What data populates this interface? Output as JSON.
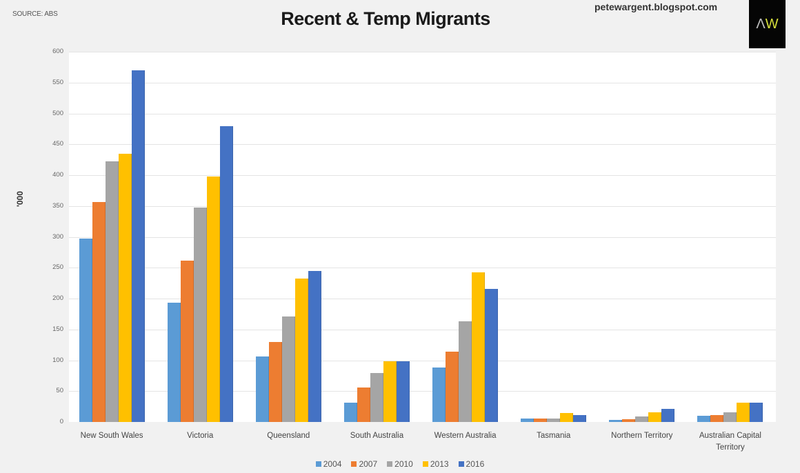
{
  "header": {
    "source": "SOURCE: ABS",
    "title": "Recent & Temp Migrants",
    "site": "petewargent.blogspot.com",
    "logo_a": "Λ",
    "logo_w": "W"
  },
  "colors": {
    "2004": "#5b9bd5",
    "2007": "#ed7d31",
    "2010": "#a5a5a5",
    "2013": "#ffc000",
    "2016": "#4472c4"
  },
  "chart_data": {
    "type": "bar",
    "title": "Recent & Temp Migrants",
    "xlabel": "",
    "ylabel": "'000",
    "ylim": [
      0,
      600
    ],
    "yticks": [
      0,
      50,
      100,
      150,
      200,
      250,
      300,
      350,
      400,
      450,
      500,
      550,
      600
    ],
    "grid": true,
    "legend_position": "bottom",
    "source": "SOURCE: ABS",
    "categories": [
      "New South Wales",
      "Victoria",
      "Queensland",
      "South Australia",
      "Western Australia",
      "Tasmania",
      "Northern Territory",
      "Australian Capital Territory"
    ],
    "series": [
      {
        "name": "2004",
        "color": "#5b9bd5",
        "values": [
          297,
          193,
          106,
          31,
          88,
          6,
          3,
          10
        ]
      },
      {
        "name": "2007",
        "color": "#ed7d31",
        "values": [
          357,
          262,
          130,
          56,
          114,
          6,
          5,
          11
        ]
      },
      {
        "name": "2010",
        "color": "#a5a5a5",
        "values": [
          422,
          347,
          171,
          79,
          163,
          6,
          9,
          16
        ]
      },
      {
        "name": "2013",
        "color": "#ffc000",
        "values": [
          435,
          398,
          232,
          98,
          242,
          14,
          16,
          31
        ]
      },
      {
        "name": "2016",
        "color": "#4472c4",
        "values": [
          570,
          479,
          245,
          98,
          216,
          11,
          21,
          31
        ]
      }
    ]
  },
  "xlabels": [
    "New South Wales",
    "Victoria",
    "Queensland",
    "South Australia",
    "Western Australia",
    "Tasmania",
    "Northern Territory",
    "Australian Capital\nTerritory"
  ],
  "legend": [
    "2004",
    "2007",
    "2010",
    "2013",
    "2016"
  ]
}
